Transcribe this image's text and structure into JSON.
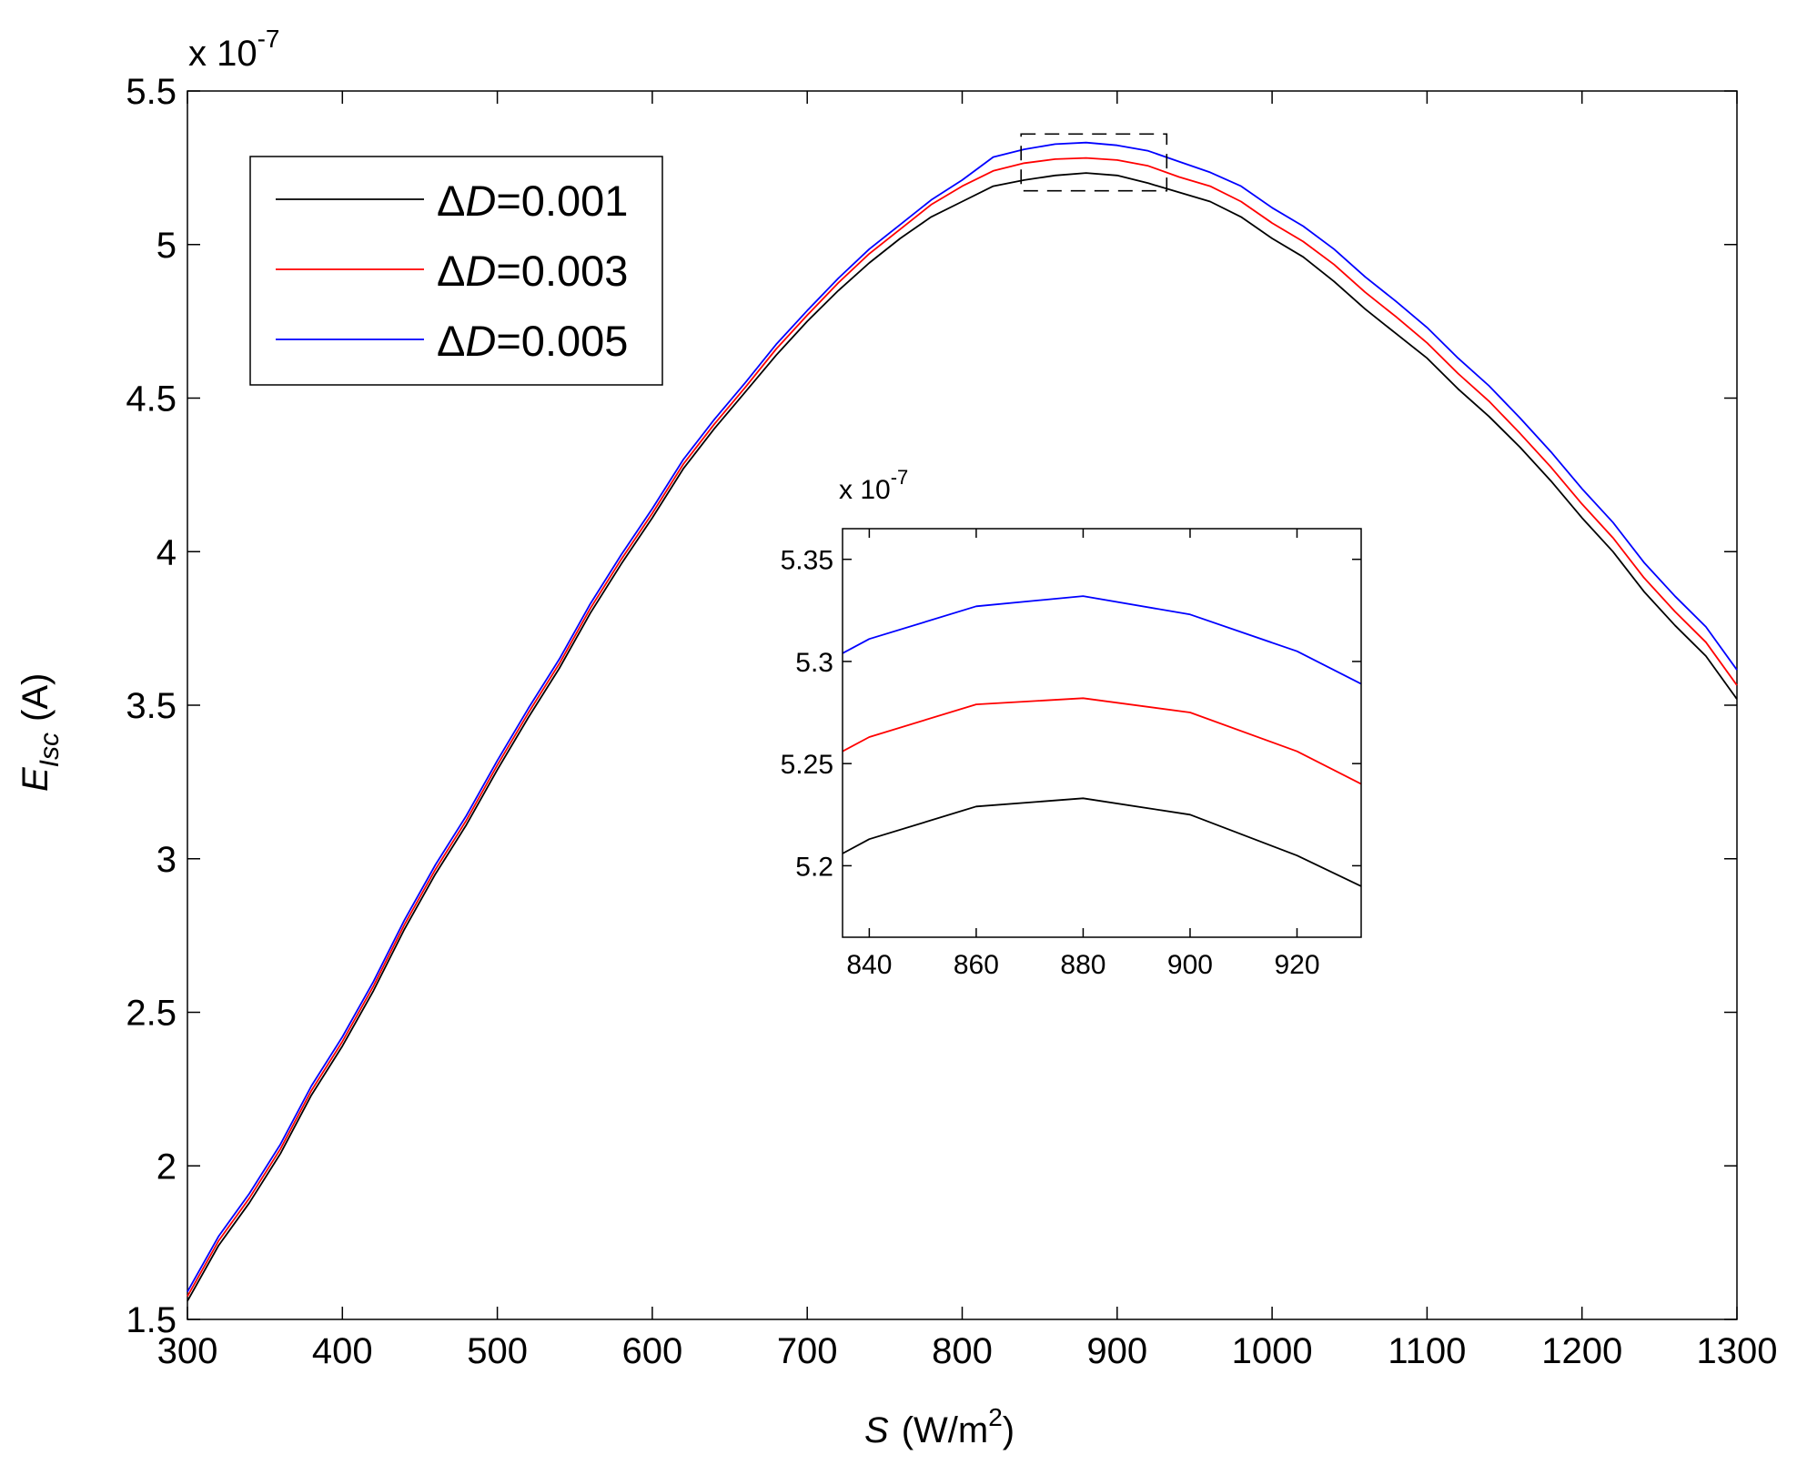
{
  "chart_data": [
    {
      "id": "main",
      "type": "line",
      "title": "",
      "xlabel": {
        "prefix": "S",
        "text": "(W/m",
        "sup": "2",
        "suffix": ")"
      },
      "ylabel": {
        "prefix": "E",
        "sub": "Isc",
        "suffix": "(A)"
      },
      "y_multiplier": "x 10",
      "y_multiplier_exp": "-7",
      "xlim": [
        300,
        1300
      ],
      "ylim": [
        1.5,
        5.5
      ],
      "xticks": [
        300,
        400,
        500,
        600,
        700,
        800,
        900,
        1000,
        1100,
        1200,
        1300
      ],
      "xtick_labels": [
        "300",
        "400",
        "500",
        "600",
        "700",
        "800",
        "900",
        "1000",
        "1100",
        "1200",
        "1300"
      ],
      "yticks": [
        1.5,
        2,
        2.5,
        3,
        3.5,
        4,
        4.5,
        5,
        5.5
      ],
      "ytick_labels": [
        "1.5",
        "2",
        "2.5",
        "3",
        "3.5",
        "4",
        "4.5",
        "5",
        "5.5"
      ],
      "grid": false,
      "legend_position": "top-left",
      "x": [
        300,
        320,
        340,
        360,
        380,
        400,
        420,
        440,
        460,
        480,
        500,
        520,
        540,
        560,
        580,
        600,
        620,
        640,
        660,
        680,
        700,
        720,
        740,
        760,
        780,
        800,
        820,
        840,
        860,
        880,
        900,
        920,
        940,
        960,
        980,
        1000,
        1020,
        1040,
        1060,
        1080,
        1100,
        1120,
        1140,
        1160,
        1180,
        1200,
        1220,
        1240,
        1260,
        1280,
        1300
      ],
      "series": [
        {
          "name": "ΔD=0.001",
          "color": "#000000",
          "values": [
            1.56,
            1.74,
            1.88,
            2.04,
            2.23,
            2.39,
            2.57,
            2.77,
            2.95,
            3.11,
            3.29,
            3.46,
            3.62,
            3.8,
            3.96,
            4.11,
            4.27,
            4.4,
            4.52,
            4.64,
            4.75,
            4.85,
            4.94,
            5.02,
            5.09,
            5.14,
            5.19,
            5.21,
            5.225,
            5.233,
            5.225,
            5.2,
            5.17,
            5.14,
            5.09,
            5.02,
            4.96,
            4.88,
            4.79,
            4.71,
            4.63,
            4.53,
            4.44,
            4.34,
            4.23,
            4.11,
            4.0,
            3.87,
            3.76,
            3.66,
            3.52
          ]
        },
        {
          "name": "ΔD=0.003",
          "color": "#ff0000",
          "values": [
            1.575,
            1.755,
            1.895,
            2.055,
            2.245,
            2.405,
            2.585,
            2.785,
            2.965,
            3.125,
            3.305,
            3.475,
            3.635,
            3.815,
            3.975,
            4.125,
            4.285,
            4.415,
            4.535,
            4.66,
            4.77,
            4.875,
            4.97,
            5.05,
            5.13,
            5.19,
            5.24,
            5.265,
            5.278,
            5.282,
            5.275,
            5.256,
            5.22,
            5.19,
            5.14,
            5.07,
            5.01,
            4.935,
            4.845,
            4.765,
            4.68,
            4.58,
            4.49,
            4.385,
            4.275,
            4.155,
            4.045,
            3.915,
            3.805,
            3.705,
            3.565
          ]
        },
        {
          "name": "ΔD=0.005",
          "color": "#0000ff",
          "values": [
            1.59,
            1.77,
            1.91,
            2.07,
            2.26,
            2.42,
            2.6,
            2.8,
            2.98,
            3.14,
            3.32,
            3.49,
            3.65,
            3.83,
            3.99,
            4.14,
            4.3,
            4.43,
            4.55,
            4.675,
            4.785,
            4.89,
            4.985,
            5.065,
            5.145,
            5.21,
            5.285,
            5.31,
            5.327,
            5.332,
            5.323,
            5.305,
            5.27,
            5.235,
            5.19,
            5.12,
            5.06,
            4.985,
            4.895,
            4.815,
            4.73,
            4.63,
            4.54,
            4.435,
            4.325,
            4.205,
            4.095,
            3.965,
            3.855,
            3.755,
            3.615
          ]
        }
      ],
      "zoom_box": {
        "x": [
          838,
          932
        ],
        "y": [
          5.175,
          5.36
        ]
      }
    },
    {
      "id": "inset",
      "type": "line",
      "y_multiplier": "x 10",
      "y_multiplier_exp": "-7",
      "xlim": [
        835,
        932
      ],
      "ylim": [
        5.165,
        5.365
      ],
      "xticks": [
        840,
        860,
        880,
        900,
        920
      ],
      "xtick_labels": [
        "840",
        "860",
        "880",
        "900",
        "920"
      ],
      "yticks": [
        5.2,
        5.25,
        5.3,
        5.35
      ],
      "ytick_labels": [
        "5.2",
        "5.25",
        "5.3",
        "5.35"
      ],
      "grid": false,
      "x": [
        835,
        840,
        860,
        880,
        900,
        920,
        932
      ],
      "series": [
        {
          "name": "ΔD=0.001",
          "color": "#000000",
          "values": [
            5.206,
            5.213,
            5.229,
            5.233,
            5.225,
            5.205,
            5.19
          ]
        },
        {
          "name": "ΔD=0.003",
          "color": "#ff0000",
          "values": [
            5.256,
            5.263,
            5.279,
            5.282,
            5.275,
            5.256,
            5.24
          ]
        },
        {
          "name": "ΔD=0.005",
          "color": "#0000ff",
          "values": [
            5.304,
            5.311,
            5.327,
            5.332,
            5.323,
            5.305,
            5.289
          ]
        }
      ]
    }
  ],
  "legend": {
    "items": [
      {
        "delta": "Δ",
        "var": "D",
        "value": "=0.001",
        "color": "#000000"
      },
      {
        "delta": "Δ",
        "var": "D",
        "value": "=0.003",
        "color": "#ff0000"
      },
      {
        "delta": "Δ",
        "var": "D",
        "value": "=0.005",
        "color": "#0000ff"
      }
    ]
  }
}
